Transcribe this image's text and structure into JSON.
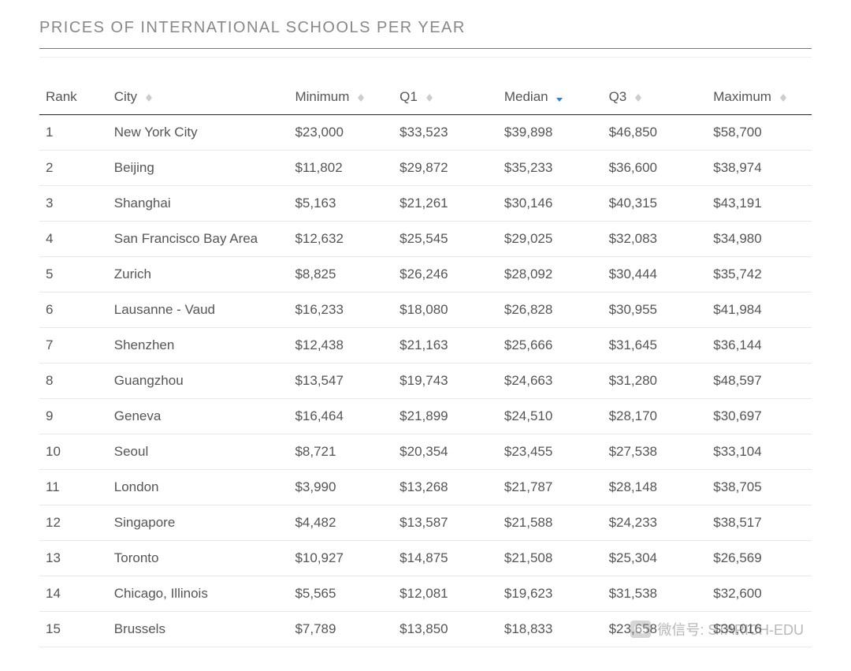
{
  "title": "PRICES OF INTERNATIONAL SCHOOLS PER YEAR",
  "columns": {
    "rank": "Rank",
    "city": "City",
    "minimum": "Minimum",
    "q1": "Q1",
    "median": "Median",
    "q3": "Q3",
    "maximum": "Maximum"
  },
  "sorted_column": "median",
  "rows": [
    {
      "rank": "1",
      "city": "New York City",
      "minimum": "$23,000",
      "q1": "$33,523",
      "median": "$39,898",
      "q3": "$46,850",
      "maximum": "$58,700"
    },
    {
      "rank": "2",
      "city": "Beijing",
      "minimum": "$11,802",
      "q1": "$29,872",
      "median": "$35,233",
      "q3": "$36,600",
      "maximum": "$38,974"
    },
    {
      "rank": "3",
      "city": "Shanghai",
      "minimum": "$5,163",
      "q1": "$21,261",
      "median": "$30,146",
      "q3": "$40,315",
      "maximum": "$43,191"
    },
    {
      "rank": "4",
      "city": "San Francisco Bay Area",
      "minimum": "$12,632",
      "q1": "$25,545",
      "median": "$29,025",
      "q3": "$32,083",
      "maximum": "$34,980"
    },
    {
      "rank": "5",
      "city": "Zurich",
      "minimum": "$8,825",
      "q1": "$26,246",
      "median": "$28,092",
      "q3": "$30,444",
      "maximum": "$35,742"
    },
    {
      "rank": "6",
      "city": "Lausanne - Vaud",
      "minimum": "$16,233",
      "q1": "$18,080",
      "median": "$26,828",
      "q3": "$30,955",
      "maximum": "$41,984"
    },
    {
      "rank": "7",
      "city": "Shenzhen",
      "minimum": "$12,438",
      "q1": "$21,163",
      "median": "$25,666",
      "q3": "$31,645",
      "maximum": "$36,144"
    },
    {
      "rank": "8",
      "city": "Guangzhou",
      "minimum": "$13,547",
      "q1": "$19,743",
      "median": "$24,663",
      "q3": "$31,280",
      "maximum": "$48,597"
    },
    {
      "rank": "9",
      "city": "Geneva",
      "minimum": "$16,464",
      "q1": "$21,899",
      "median": "$24,510",
      "q3": "$28,170",
      "maximum": "$30,697"
    },
    {
      "rank": "10",
      "city": "Seoul",
      "minimum": "$8,721",
      "q1": "$20,354",
      "median": "$23,455",
      "q3": "$27,538",
      "maximum": "$33,104"
    },
    {
      "rank": "11",
      "city": "London",
      "minimum": "$3,990",
      "q1": "$13,268",
      "median": "$21,787",
      "q3": "$28,148",
      "maximum": "$38,705"
    },
    {
      "rank": "12",
      "city": "Singapore",
      "minimum": "$4,482",
      "q1": "$13,587",
      "median": "$21,588",
      "q3": "$24,233",
      "maximum": "$38,517"
    },
    {
      "rank": "13",
      "city": "Toronto",
      "minimum": "$10,927",
      "q1": "$14,875",
      "median": "$21,508",
      "q3": "$25,304",
      "maximum": "$26,569"
    },
    {
      "rank": "14",
      "city": "Chicago, Illinois",
      "minimum": "$5,565",
      "q1": "$12,081",
      "median": "$19,623",
      "q3": "$31,538",
      "maximum": "$32,600"
    },
    {
      "rank": "15",
      "city": "Brussels",
      "minimum": "$7,789",
      "q1": "$13,850",
      "median": "$18,833",
      "q3": "$23,658",
      "maximum": "$39,016"
    }
  ],
  "watermark": "微信号: STARICH-EDU",
  "colors": {
    "title_underline": "#d74a5a",
    "header_border": "#222222",
    "row_border": "#e8e8e8",
    "text": "#555555",
    "sort_active": "#3a7ed6"
  }
}
